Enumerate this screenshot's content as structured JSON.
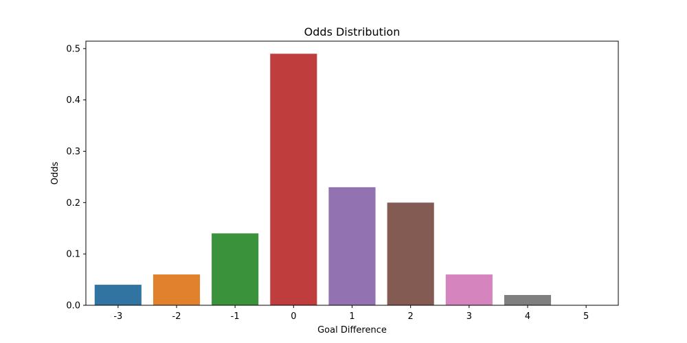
{
  "chart_data": {
    "type": "bar",
    "title": "Odds Distribution",
    "xlabel": "Goal Difference",
    "ylabel": "Odds",
    "categories": [
      "-3",
      "-2",
      "-1",
      "0",
      "1",
      "2",
      "3",
      "4",
      "5"
    ],
    "values": [
      0.04,
      0.06,
      0.14,
      0.49,
      0.23,
      0.2,
      0.06,
      0.02,
      0.0
    ],
    "colors": [
      "#3274a1",
      "#e1812c",
      "#3a923a",
      "#c03d3e",
      "#9372b2",
      "#845b53",
      "#d684bd",
      "#7f7f7f",
      "#a9aa35"
    ],
    "ylim": [
      0,
      0.5145
    ],
    "yticks": [
      0.0,
      0.1,
      0.2,
      0.3,
      0.4,
      0.5
    ],
    "ytick_labels": [
      "0.0",
      "0.1",
      "0.2",
      "0.3",
      "0.4",
      "0.5"
    ],
    "grid": false,
    "legend": "none"
  }
}
